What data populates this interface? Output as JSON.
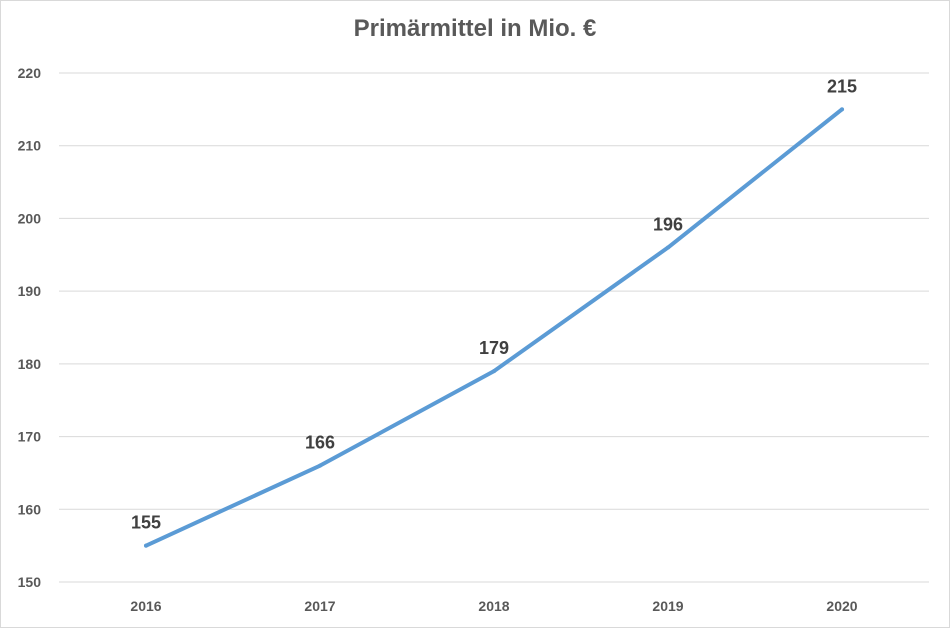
{
  "chart_data": {
    "type": "line",
    "title": "Primärmittel in Mio. €",
    "xlabel": "",
    "ylabel": "",
    "categories": [
      "2016",
      "2017",
      "2018",
      "2019",
      "2020"
    ],
    "series": [
      {
        "values": [
          155,
          166,
          179,
          196,
          215
        ],
        "color": "#5b9bd5"
      }
    ],
    "ylim": [
      150,
      220
    ],
    "yticks": [
      "150",
      "160",
      "170",
      "180",
      "190",
      "200",
      "210",
      "220"
    ],
    "data_labels": [
      "155",
      "166",
      "179",
      "196",
      "215"
    ],
    "grid": true,
    "legend": "none"
  }
}
